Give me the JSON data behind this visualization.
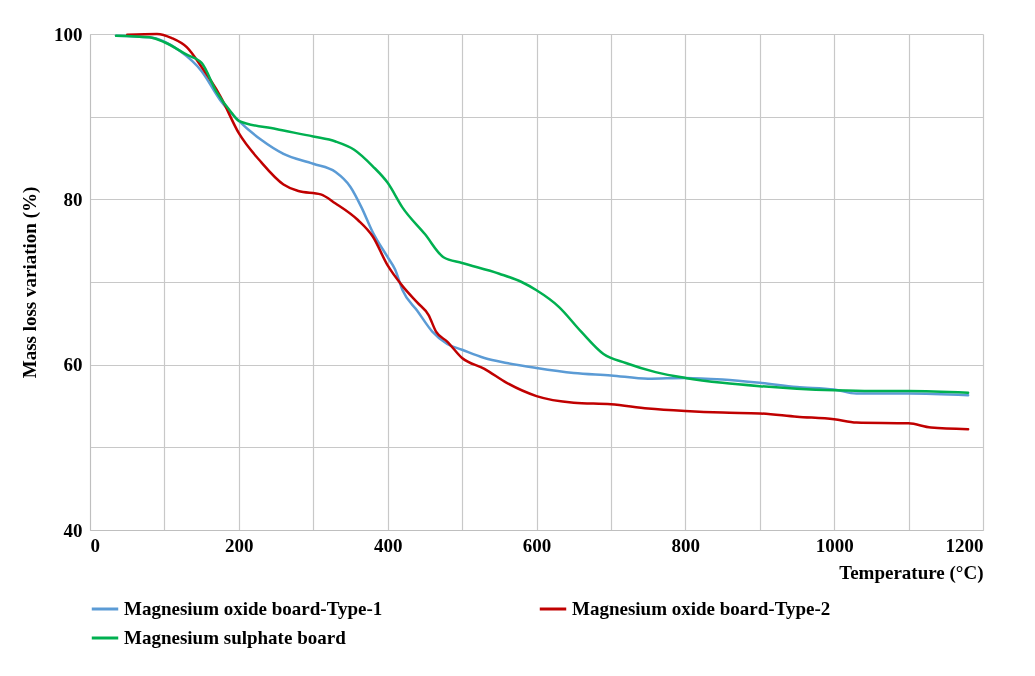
{
  "chart_data": {
    "type": "line",
    "xlabel": "Temperature (°C)",
    "ylabel": "Mass loss variation (%)",
    "xlim": [
      0,
      1200
    ],
    "ylim": [
      40,
      100
    ],
    "xticks": [
      0,
      {
        "value": 100,
        "label": null
      },
      200,
      {
        "value": 300,
        "label": null
      },
      400,
      {
        "value": 500,
        "label": null
      },
      600,
      {
        "value": 700,
        "label": null
      },
      800,
      {
        "value": 900,
        "label": null
      },
      1000,
      {
        "value": 1100,
        "label": null
      },
      1200
    ],
    "yticks": [
      40,
      {
        "value": 50,
        "label": null
      },
      60,
      {
        "value": 70,
        "label": null
      },
      80,
      {
        "value": 90,
        "label": null
      },
      100
    ],
    "grid": true,
    "legend": "bottom",
    "marker": "none",
    "line_style": "solid",
    "series": [
      {
        "name": "Magnesium oxide board-Type-1",
        "color": "#5b9bd5",
        "x": [
          35,
          80,
          120,
          150,
          175,
          200,
          230,
          260,
          300,
          330,
          350,
          365,
          380,
          400,
          410,
          420,
          440,
          460,
          480,
          500,
          530,
          560,
          600,
          650,
          700,
          750,
          800,
          850,
          900,
          950,
          1000,
          1030,
          1100,
          1180
        ],
        "values": [
          99.8,
          99.6,
          98,
          95.5,
          92,
          89.5,
          87.2,
          85.5,
          84.3,
          83.3,
          81.5,
          79,
          76,
          73,
          71.5,
          69,
          66.5,
          64,
          62.5,
          61.8,
          60.8,
          60.2,
          59.6,
          59,
          58.7,
          58.3,
          58.4,
          58.2,
          57.8,
          57.3,
          57,
          56.5,
          56.5,
          56.3
        ]
      },
      {
        "name": "Magnesium oxide board-Type-2",
        "color": "#c00000",
        "x": [
          50,
          90,
          110,
          130,
          150,
          175,
          200,
          230,
          260,
          280,
          310,
          330,
          360,
          380,
          400,
          420,
          440,
          455,
          465,
          480,
          500,
          530,
          560,
          600,
          650,
          700,
          750,
          800,
          850,
          900,
          950,
          1000,
          1030,
          1100,
          1130,
          1180
        ],
        "values": [
          99.9,
          100,
          99.5,
          98.4,
          96,
          92.5,
          88,
          84.5,
          81.8,
          81,
          80.6,
          79.5,
          77.5,
          75.5,
          72,
          69.5,
          67.5,
          66,
          64,
          62.8,
          60.8,
          59.5,
          57.8,
          56.2,
          55.4,
          55.2,
          54.7,
          54.4,
          54.2,
          54.1,
          53.7,
          53.4,
          53,
          52.9,
          52.4,
          52.2
        ]
      },
      {
        "name": "Magnesium sulphate board",
        "color": "#00b050",
        "x": [
          35,
          80,
          100,
          130,
          150,
          170,
          190,
          200,
          250,
          300,
          330,
          355,
          380,
          400,
          420,
          450,
          475,
          500,
          550,
          580,
          600,
          630,
          660,
          690,
          720,
          760,
          800,
          850,
          900,
          950,
          1000,
          1050,
          1100,
          1180
        ],
        "values": [
          99.8,
          99.6,
          99,
          97.5,
          96.5,
          93,
          90.5,
          89.5,
          88.5,
          87.6,
          87,
          86,
          84,
          82,
          79,
          75.8,
          73,
          72.3,
          71,
          70,
          69,
          67,
          64,
          61.3,
          60.2,
          59.1,
          58.4,
          57.8,
          57.4,
          57.1,
          56.9,
          56.8,
          56.8,
          56.6
        ]
      }
    ]
  }
}
